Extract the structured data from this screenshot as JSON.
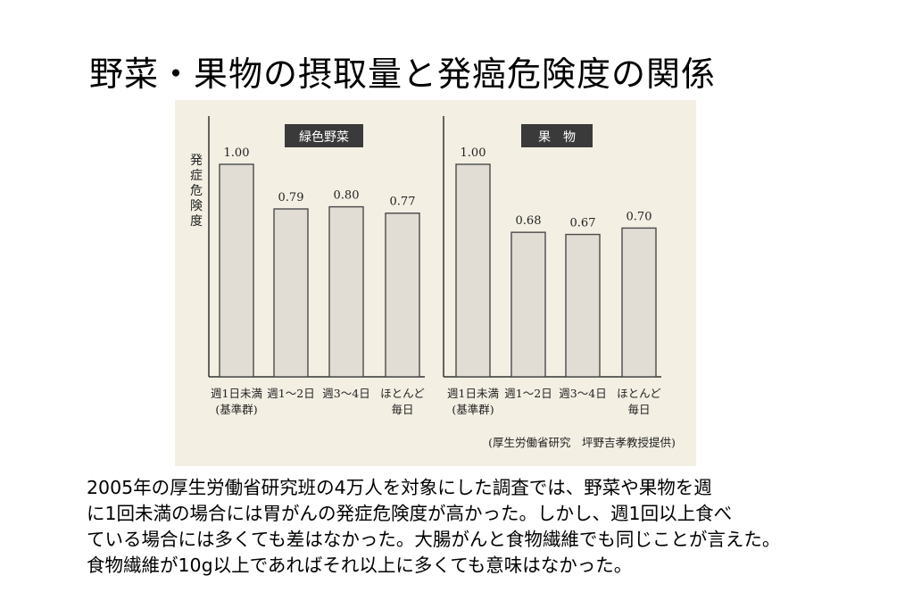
{
  "title": "野菜・果物の摂取量と発癌危険度の関係",
  "chart_data": [
    {
      "type": "bar",
      "title": "緑色野菜",
      "ylabel": "発症危険度",
      "categories": [
        "週1日未満\n(基準群)",
        "週1〜2日",
        "週3〜4日",
        "ほとんど\n毎日"
      ],
      "values": [
        1.0,
        0.79,
        0.8,
        0.77
      ],
      "value_labels": [
        "1.00",
        "0.79",
        "0.80",
        "0.77"
      ],
      "ylim": [
        0,
        1.2
      ],
      "grid": false
    },
    {
      "type": "bar",
      "title": "果　物",
      "ylabel": "",
      "categories": [
        "週1日未満\n(基準群)",
        "週1〜2日",
        "週3〜4日",
        "ほとんど\n毎日"
      ],
      "values": [
        1.0,
        0.68,
        0.67,
        0.7
      ],
      "value_labels": [
        "1.00",
        "0.68",
        "0.67",
        "0.70"
      ],
      "ylim": [
        0,
        1.2
      ],
      "grid": false
    }
  ],
  "source": "(厚生労働省研究　坪野吉孝教授提供)",
  "description_lines": [
    "2005年の厚生労働省研究班の4万人を対象にした調査では、野菜や果物を週",
    "に1回未満の場合には胃がんの発症危険度が高かった。しかし、週1回以上食べ",
    "ている場合には多くても差はなかった。大腸がんと食物繊維でも同じことが言えた。",
    "食物繊維が10g以上であればそれ以上に多くても意味はなかった。"
  ]
}
